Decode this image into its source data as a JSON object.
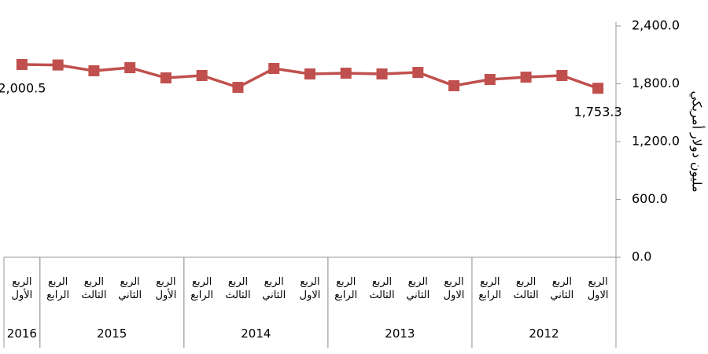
{
  "chart_data": {
    "type": "line",
    "y_label": "مليون دولار أمريكي",
    "x_reversed": true,
    "groups": [
      {
        "name": "2012",
        "quarters": [
          "الربع الاول",
          "الربع الثاني",
          "الربع الثالث",
          "الربع الرابع"
        ]
      },
      {
        "name": "2013",
        "quarters": [
          "الربع الاول",
          "الربع الثاني",
          "الربع الثالث",
          "الربع الرابع"
        ]
      },
      {
        "name": "2014",
        "quarters": [
          "الربع الاول",
          "الربع الثاني",
          "الربع الثالث",
          "الربع الرابع"
        ]
      },
      {
        "name": "2015",
        "quarters": [
          "الربع الأول",
          "الربع الثاني",
          "الربع الثالث",
          "الربع الرابع"
        ]
      },
      {
        "name": "2016",
        "quarters": [
          "الربع الأول"
        ]
      }
    ],
    "series": [
      {
        "color": "#c0504d",
        "values": [
          1753.3,
          1886,
          1869,
          1845,
          1780,
          1918,
          1902,
          1910,
          1902,
          1959,
          1763,
          1886,
          1861,
          1967,
          1935,
          1995,
          2000.5
        ],
        "value_labels": [
          "1,753.3",
          null,
          null,
          null,
          null,
          null,
          null,
          null,
          null,
          null,
          null,
          null,
          null,
          null,
          null,
          null,
          "2,000.5"
        ]
      }
    ],
    "ylim": [
      0,
      2400
    ],
    "yticks": [
      {
        "value": 0,
        "label": "0.0"
      },
      {
        "value": 600,
        "label": "600.0"
      },
      {
        "value": 1200,
        "label": "1,200.0"
      },
      {
        "value": 1800,
        "label": "1,800.0"
      },
      {
        "value": 2400,
        "label": "2,400.0"
      }
    ]
  }
}
